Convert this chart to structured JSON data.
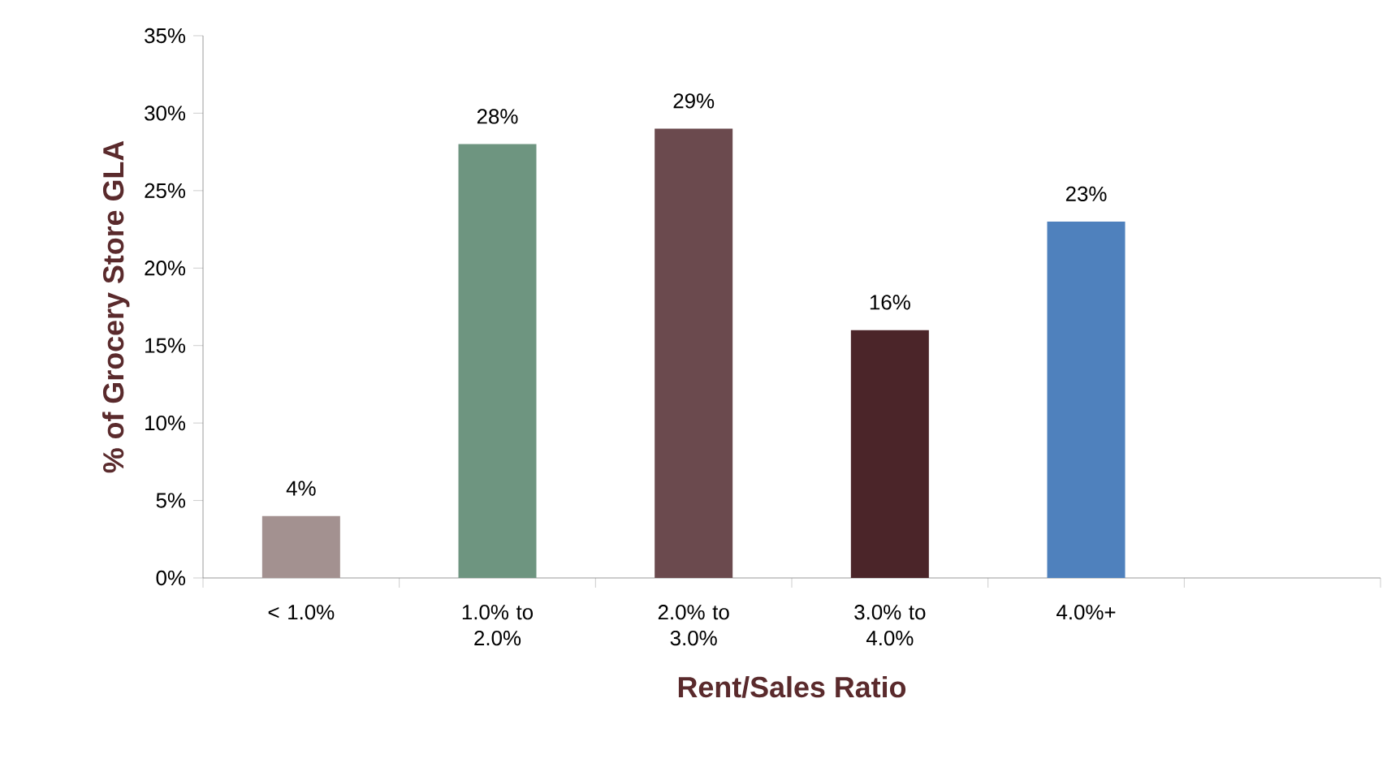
{
  "chart_data": {
    "type": "bar",
    "xlabel": "Rent/Sales Ratio",
    "ylabel": "% of Grocery Store GLA",
    "categories": [
      "< 1.0%",
      "1.0% to 2.0%",
      "2.0% to 3.0%",
      "3.0% to 4.0%",
      "4.0%+",
      null
    ],
    "values": [
      4,
      28,
      29,
      16,
      23,
      null
    ],
    "colors": [
      "#a39190",
      "#6e9580",
      "#6b4a4e",
      "#4b2529",
      "#4f81bd",
      "#4f81bd"
    ],
    "value_labels": [
      "4%",
      "28%",
      "29%",
      "16%",
      "23%",
      null
    ],
    "ylim": [
      0,
      35
    ],
    "yticks": [
      {
        "value": 0,
        "label": "0%"
      },
      {
        "value": 5,
        "label": "5%"
      },
      {
        "value": 10,
        "label": "10%"
      },
      {
        "value": 15,
        "label": "15%"
      },
      {
        "value": 20,
        "label": "20%"
      },
      {
        "value": 25,
        "label": "25%"
      },
      {
        "value": 30,
        "label": "30%"
      },
      {
        "value": 35,
        "label": "35%"
      }
    ],
    "grid": false
  }
}
